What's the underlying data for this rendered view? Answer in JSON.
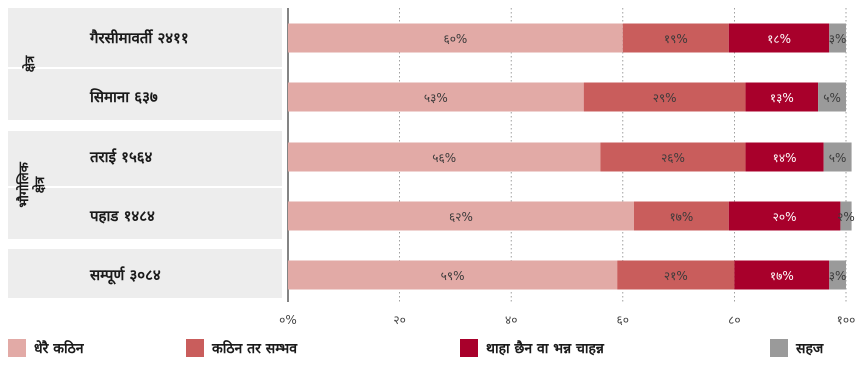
{
  "chart_data": {
    "type": "bar",
    "stacked": true,
    "orientation": "horizontal",
    "groups": [
      {
        "label": "क्षेत्र",
        "rows": [
          0,
          1
        ]
      },
      {
        "label": "भौगोलिक क्षेत्र",
        "rows": [
          2,
          3
        ]
      },
      {
        "label": "",
        "rows": [
          4
        ]
      }
    ],
    "categories": [
      "गैरसीमावर्ती २४११",
      "सिमाना ६३७",
      "तराई १५६४",
      "पहाड १४८४",
      "सम्पूर्ण ३०८४"
    ],
    "series": [
      {
        "name": "धेरै कठिन",
        "color": "#e2aaa6",
        "values": [
          60,
          53,
          56,
          62,
          59
        ],
        "labels": [
          "६०%",
          "५३%",
          "५६%",
          "६२%",
          "५९%"
        ]
      },
      {
        "name": "कठिन तर सम्भव",
        "color": "#c95d5c",
        "values": [
          19,
          29,
          26,
          17,
          21
        ],
        "labels": [
          "१९%",
          "२९%",
          "२६%",
          "१७%",
          "२१%"
        ]
      },
      {
        "name": "थाहा छैन वा भन्न चाहन्न",
        "color": "#a8002b",
        "values": [
          18,
          13,
          14,
          20,
          17
        ],
        "labels": [
          "१८%",
          "१३%",
          "१४%",
          "२०%",
          "१७%"
        ]
      },
      {
        "name": "सहज",
        "color": "#9a9a9a",
        "values": [
          3,
          5,
          5,
          2,
          3
        ],
        "labels": [
          "३%",
          "५%",
          "५%",
          "२%",
          "३%"
        ]
      }
    ],
    "xlim": [
      0,
      100
    ],
    "xticks": [
      0,
      20,
      40,
      60,
      80,
      100
    ],
    "xtick_labels": [
      "०%",
      "२०",
      "४०",
      "६०",
      "८०",
      "१००"
    ],
    "grid": "vertical dotted",
    "legend_position": "bottom"
  }
}
